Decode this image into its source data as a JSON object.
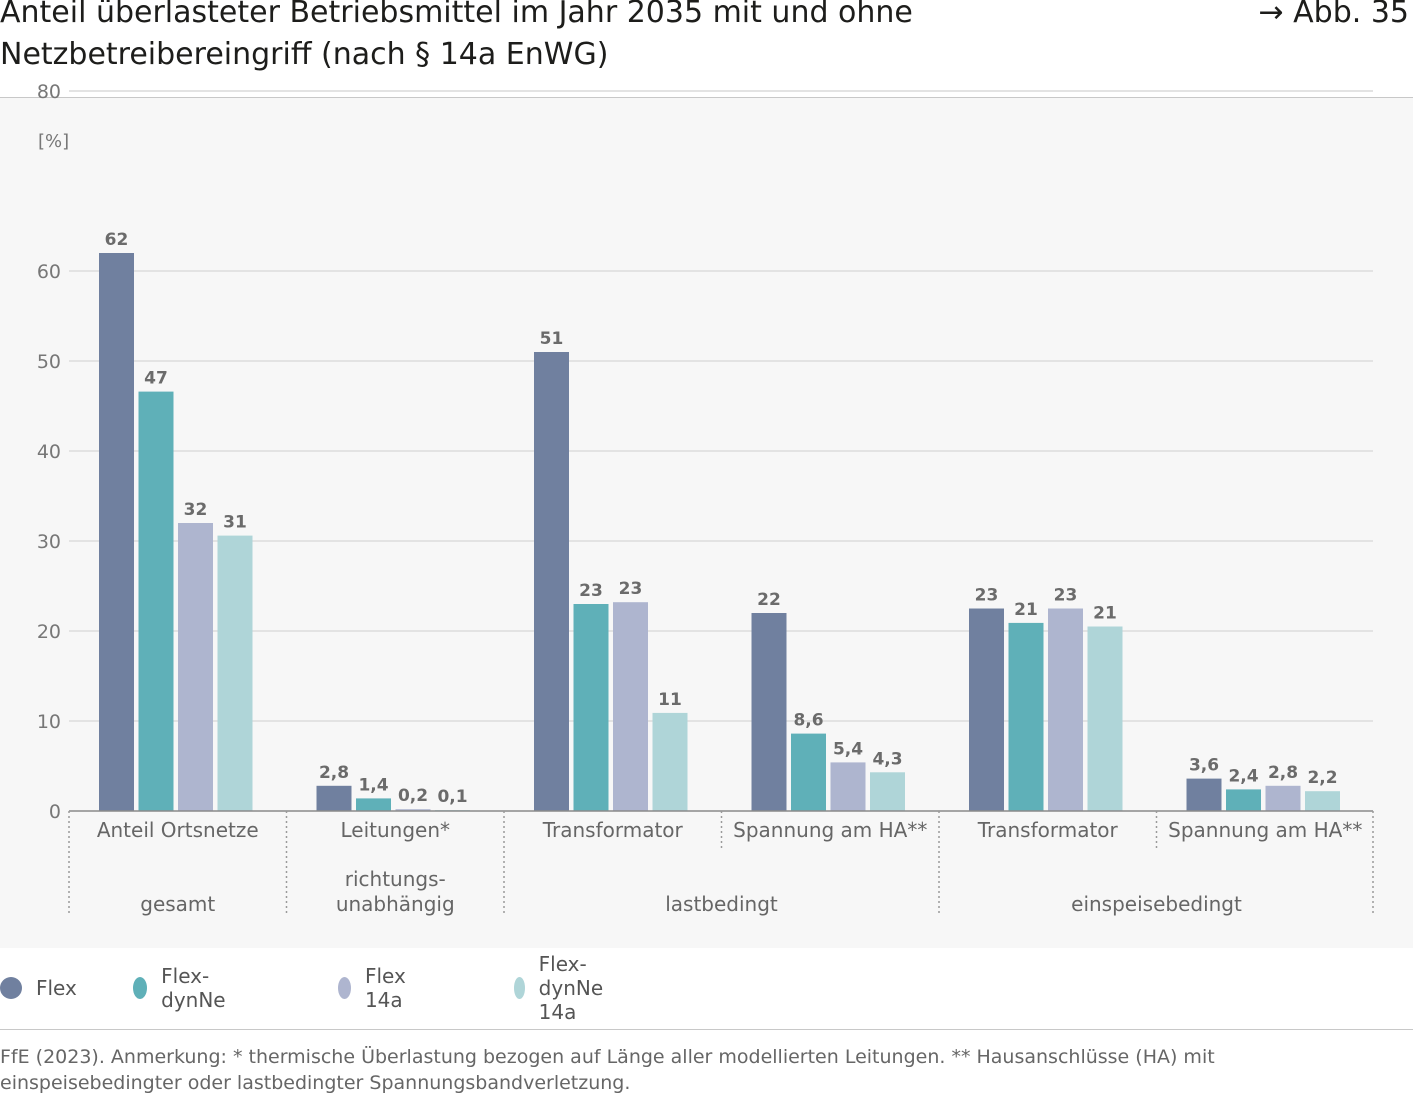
{
  "header": {
    "title": "Anteil überlasteter Betriebsmittel im Jahr 2035 mit und ohne Netzbetreibereingriff (nach § 14a EnWG)",
    "figure_ref": "→ Abb. 35"
  },
  "footer": {
    "source": "FfE (2023). Anmerkung: * thermische Überlastung bezogen auf Länge aller modellierten Leitungen. ** Hausanschlüsse (HA) mit einspeisebedingter oder lastbedingter Spannungsbandverletzung."
  },
  "chart_data": {
    "type": "bar",
    "ylabel": "[%]",
    "ylim": [
      0,
      80
    ],
    "yticks": [
      0,
      10,
      20,
      30,
      40,
      50,
      60,
      80
    ],
    "grid": true,
    "legend_position": "bottom-left",
    "categories": [
      "Anteil Ortsnetze",
      "Leitungen*",
      "Transformator",
      "Spannung am HA**",
      "Transformator",
      "Spannung am HA**"
    ],
    "groups": [
      {
        "label": "gesamt",
        "categories": [
          0
        ]
      },
      {
        "label": "richtungs-\nunabhängig",
        "categories": [
          1
        ]
      },
      {
        "label": "lastbedingt",
        "categories": [
          2,
          3
        ]
      },
      {
        "label": "einspeisebedingt",
        "categories": [
          4,
          5
        ]
      }
    ],
    "series": [
      {
        "name": "Flex",
        "color": "#70809f",
        "values": [
          62,
          2.8,
          51,
          22,
          22.5,
          3.6
        ],
        "labels": [
          "62",
          "2,8",
          "51",
          "22",
          "23",
          "3,6"
        ]
      },
      {
        "name": "Flex-dynNe",
        "color": "#5fb0b8",
        "values": [
          46.6,
          1.4,
          23,
          8.6,
          20.9,
          2.4
        ],
        "labels": [
          "47",
          "1,4",
          "23",
          "8,6",
          "21",
          "2,4"
        ]
      },
      {
        "name": "Flex 14a",
        "color": "#aeb5cf",
        "values": [
          32,
          0.2,
          23.2,
          5.4,
          22.5,
          2.8
        ],
        "labels": [
          "32",
          "0,2",
          "23",
          "5,4",
          "23",
          "2,8"
        ]
      },
      {
        "name": "Flex-dynNe 14a",
        "color": "#afd5d8",
        "values": [
          30.6,
          0.1,
          10.9,
          4.3,
          20.5,
          2.2
        ],
        "labels": [
          "31",
          "0,1",
          "11",
          "4,3",
          "21",
          "2,2"
        ]
      }
    ]
  }
}
